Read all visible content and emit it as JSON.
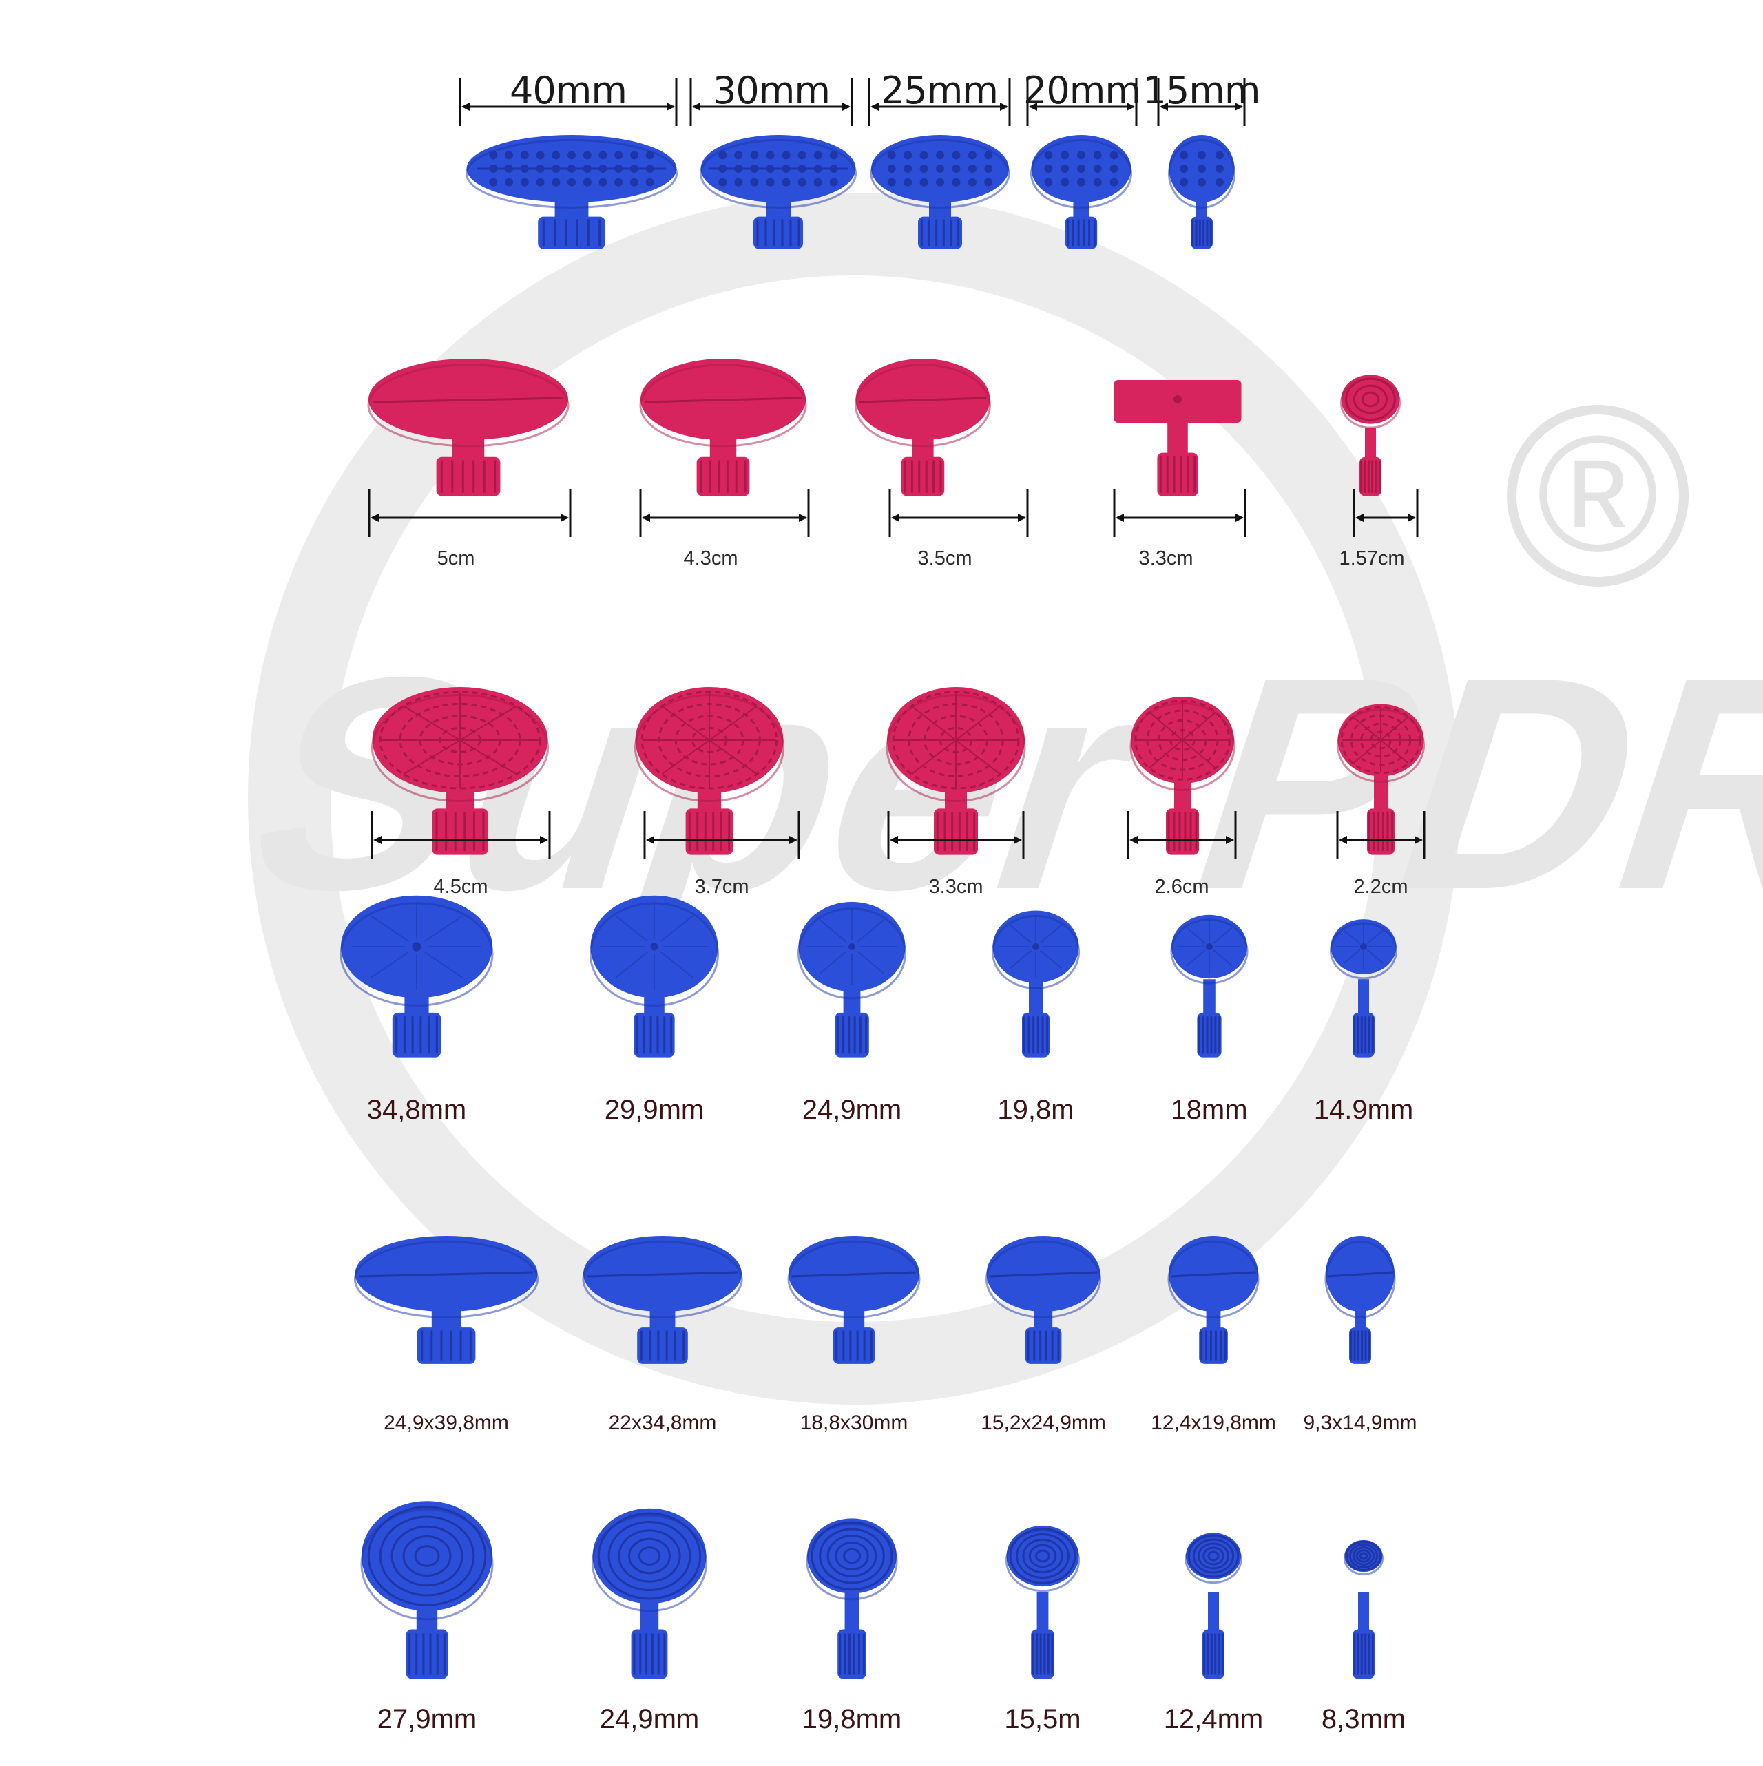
{
  "colors": {
    "blue": "#2b4fd8",
    "blue_dark": "#1e36a8",
    "pink": "#d8245e",
    "pink_dark": "#a91848",
    "watermark": "#e6e6e6"
  },
  "watermark": {
    "brand_text": "Super PDR",
    "registered_mark": "®"
  },
  "rows": [
    {
      "id": "row-1",
      "color": "blue",
      "labels": [
        "40mm",
        "30mm",
        "25mm",
        "20mm",
        "15mm"
      ]
    },
    {
      "id": "row-2",
      "color": "pink",
      "labels": [
        "5cm",
        "4.3cm",
        "3.5cm",
        "3.3cm",
        "1.57cm"
      ]
    },
    {
      "id": "row-3",
      "color": "pink",
      "labels": [
        "4.5cm",
        "3.7cm",
        "3.3cm",
        "2.6cm",
        "2.2cm"
      ]
    },
    {
      "id": "row-4",
      "color": "blue",
      "labels": [
        "34,8mm",
        "29,9mm",
        "24,9mm",
        "19,8m",
        "18mm",
        "14.9mm"
      ]
    },
    {
      "id": "row-5",
      "color": "blue",
      "labels": [
        "24,9x39,8mm",
        "22x34,8mm",
        "18,8x30mm",
        "15,2x24,9mm",
        "12,4x19,8mm",
        "9,3x14,9mm"
      ]
    },
    {
      "id": "row-6",
      "color": "blue",
      "labels": [
        "27,9mm",
        "24,9mm",
        "19,8mm",
        "15,5m",
        "12,4mm",
        "8,3mm"
      ]
    }
  ]
}
